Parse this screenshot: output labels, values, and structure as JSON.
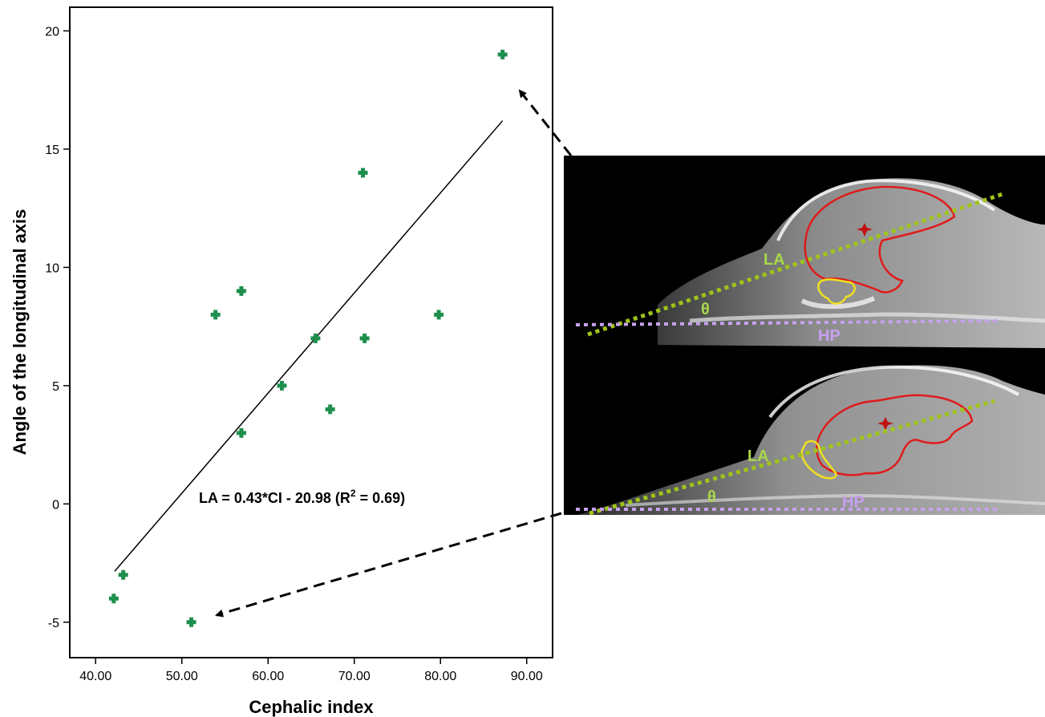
{
  "chart_data": {
    "type": "scatter",
    "title": "",
    "xlabel": "Cephalic index",
    "ylabel": "Angle of the longitudinal axis",
    "xlim": [
      37,
      93
    ],
    "ylim": [
      -6.5,
      21
    ],
    "x_ticks": [
      "40.00",
      "50.00",
      "60.00",
      "70.00",
      "80.00",
      "90.00"
    ],
    "y_ticks": [
      "-5",
      "0",
      "5",
      "10",
      "15",
      "20"
    ],
    "points": [
      {
        "x": 42.1,
        "y": -4
      },
      {
        "x": 43.2,
        "y": -3
      },
      {
        "x": 51.1,
        "y": -5
      },
      {
        "x": 53.9,
        "y": 8
      },
      {
        "x": 56.9,
        "y": 9
      },
      {
        "x": 56.9,
        "y": 3
      },
      {
        "x": 61.6,
        "y": 5
      },
      {
        "x": 65.5,
        "y": 7
      },
      {
        "x": 67.2,
        "y": 4
      },
      {
        "x": 71.0,
        "y": 14
      },
      {
        "x": 71.2,
        "y": 7
      },
      {
        "x": 79.8,
        "y": 8
      },
      {
        "x": 87.2,
        "y": 19
      }
    ],
    "fit_line": {
      "x": [
        42.2,
        87.2
      ],
      "y": [
        -2.85,
        16.2
      ]
    },
    "annotation": {
      "text_main": "LA = 0.43*CI - 20.98 (R",
      "sup": "2",
      "text_end": " = 0.69)"
    },
    "grid": false,
    "point_color": "#1f8f4e"
  },
  "images": {
    "top": {
      "la_label": "LA",
      "theta_label": "θ",
      "hp_label": "HP"
    },
    "bottom": {
      "la_label": "LA",
      "theta_label": "θ",
      "hp_label": "HP"
    }
  },
  "colors": {
    "longitudinal_axis": "#9fc51a",
    "horizontal_plane": "#c8a0f0",
    "brain_outline": "#e01b1b",
    "pituitary_outline": "#f0e020",
    "label_green": "#a8d84a",
    "label_purple": "#c8a0f0"
  }
}
